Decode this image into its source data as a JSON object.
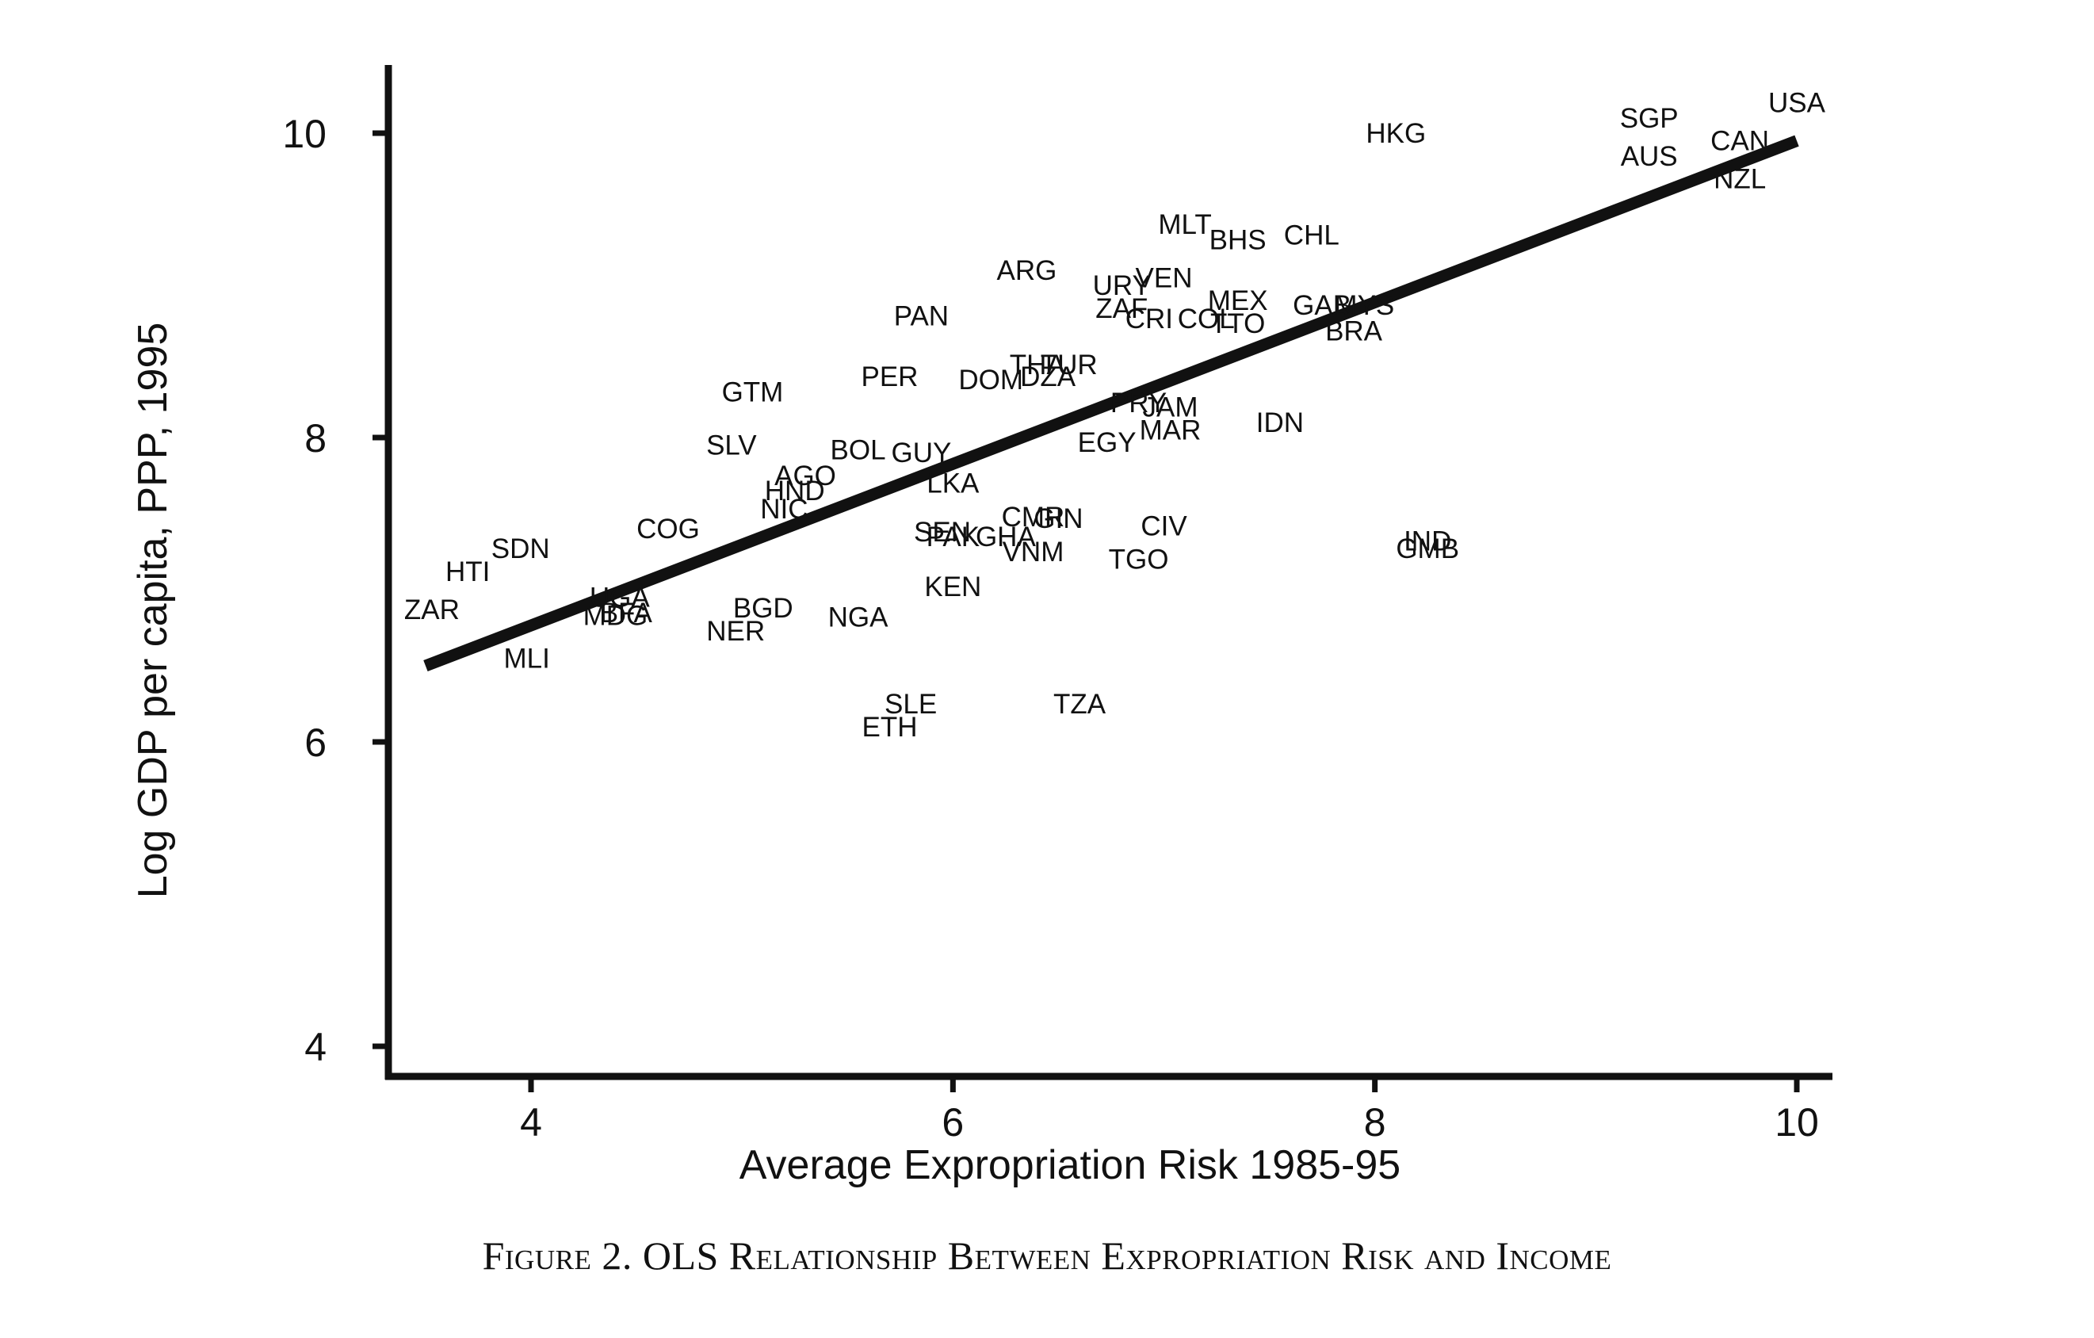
{
  "caption": "Figure 2. OLS Relationship Between Expropriation Risk and Income",
  "chart_data": {
    "type": "scatter",
    "xlabel": "Average Expropriation Risk 1985-95",
    "ylabel": "Log GDP per capita, PPP, 1995",
    "xlim": [
      3.4,
      10.2
    ],
    "ylim": [
      3.8,
      10.5
    ],
    "x_ticks": [
      4,
      6,
      8,
      10
    ],
    "y_ticks": [
      4,
      6,
      8,
      10
    ],
    "grid": false,
    "fit_line": {
      "x": [
        3.5,
        10.0
      ],
      "y": [
        6.5,
        9.95
      ]
    },
    "points": [
      {
        "label": "USA",
        "x": 10.0,
        "y": 10.2
      },
      {
        "label": "SGP",
        "x": 9.3,
        "y": 10.1
      },
      {
        "label": "AUS",
        "x": 9.3,
        "y": 9.85
      },
      {
        "label": "CAN",
        "x": 9.73,
        "y": 9.95
      },
      {
        "label": "NZL",
        "x": 9.73,
        "y": 9.7
      },
      {
        "label": "HKG",
        "x": 8.1,
        "y": 10.0
      },
      {
        "label": "MLT",
        "x": 7.1,
        "y": 9.4
      },
      {
        "label": "BHS",
        "x": 7.35,
        "y": 9.3
      },
      {
        "label": "CHL",
        "x": 7.7,
        "y": 9.33
      },
      {
        "label": "ARG",
        "x": 6.35,
        "y": 9.1
      },
      {
        "label": "URY",
        "x": 6.8,
        "y": 9.0
      },
      {
        "label": "VEN",
        "x": 7.0,
        "y": 9.05
      },
      {
        "label": "MEX",
        "x": 7.35,
        "y": 8.9
      },
      {
        "label": "GAB",
        "x": 7.75,
        "y": 8.87
      },
      {
        "label": "MYS",
        "x": 7.95,
        "y": 8.87
      },
      {
        "label": "ZAF",
        "x": 6.8,
        "y": 8.85
      },
      {
        "label": "CRI",
        "x": 6.93,
        "y": 8.78
      },
      {
        "label": "COL",
        "x": 7.2,
        "y": 8.78
      },
      {
        "label": "TTO",
        "x": 7.35,
        "y": 8.75
      },
      {
        "label": "BRA",
        "x": 7.9,
        "y": 8.7
      },
      {
        "label": "PAN",
        "x": 5.85,
        "y": 8.8
      },
      {
        "label": "THA",
        "x": 6.4,
        "y": 8.48
      },
      {
        "label": "TUR",
        "x": 6.55,
        "y": 8.48
      },
      {
        "label": "DOM",
        "x": 6.18,
        "y": 8.38
      },
      {
        "label": "DZA",
        "x": 6.45,
        "y": 8.4
      },
      {
        "label": "PER",
        "x": 5.7,
        "y": 8.4
      },
      {
        "label": "GTM",
        "x": 5.05,
        "y": 8.3
      },
      {
        "label": "PRY",
        "x": 6.88,
        "y": 8.23
      },
      {
        "label": "JAM",
        "x": 7.03,
        "y": 8.2
      },
      {
        "label": "MAR",
        "x": 7.03,
        "y": 8.05
      },
      {
        "label": "IDN",
        "x": 7.55,
        "y": 8.1
      },
      {
        "label": "EGY",
        "x": 6.73,
        "y": 7.97
      },
      {
        "label": "SLV",
        "x": 4.95,
        "y": 7.95
      },
      {
        "label": "BOL",
        "x": 5.55,
        "y": 7.92
      },
      {
        "label": "GUY",
        "x": 5.85,
        "y": 7.9
      },
      {
        "label": "AGO",
        "x": 5.3,
        "y": 7.75
      },
      {
        "label": "HND",
        "x": 5.25,
        "y": 7.65
      },
      {
        "label": "LKA",
        "x": 6.0,
        "y": 7.7
      },
      {
        "label": "NIC",
        "x": 5.2,
        "y": 7.53
      },
      {
        "label": "CMR",
        "x": 6.38,
        "y": 7.48
      },
      {
        "label": "GIN",
        "x": 6.5,
        "y": 7.47
      },
      {
        "label": "CIV",
        "x": 7.0,
        "y": 7.42
      },
      {
        "label": "COG",
        "x": 4.65,
        "y": 7.4
      },
      {
        "label": "SEN",
        "x": 5.95,
        "y": 7.38
      },
      {
        "label": "PAK",
        "x": 6.0,
        "y": 7.35
      },
      {
        "label": "GHA",
        "x": 6.25,
        "y": 7.35
      },
      {
        "label": "VNM",
        "x": 6.38,
        "y": 7.25
      },
      {
        "label": "TGO",
        "x": 6.88,
        "y": 7.2
      },
      {
        "label": "IND",
        "x": 8.25,
        "y": 7.32
      },
      {
        "label": "GMB",
        "x": 8.25,
        "y": 7.27
      },
      {
        "label": "SDN",
        "x": 3.95,
        "y": 7.27
      },
      {
        "label": "HTI",
        "x": 3.7,
        "y": 7.12
      },
      {
        "label": "KEN",
        "x": 6.0,
        "y": 7.02
      },
      {
        "label": "UGA",
        "x": 4.42,
        "y": 6.95
      },
      {
        "label": "MDG",
        "x": 4.4,
        "y": 6.83
      },
      {
        "label": "BFA",
        "x": 4.45,
        "y": 6.85
      },
      {
        "label": "BGD",
        "x": 5.1,
        "y": 6.88
      },
      {
        "label": "NGA",
        "x": 5.55,
        "y": 6.82
      },
      {
        "label": "NER",
        "x": 4.97,
        "y": 6.73
      },
      {
        "label": "ZAR",
        "x": 3.53,
        "y": 6.87
      },
      {
        "label": "MLI",
        "x": 3.98,
        "y": 6.55
      },
      {
        "label": "SLE",
        "x": 5.8,
        "y": 6.25
      },
      {
        "label": "ETH",
        "x": 5.7,
        "y": 6.1
      },
      {
        "label": "TZA",
        "x": 6.6,
        "y": 6.25
      }
    ]
  }
}
